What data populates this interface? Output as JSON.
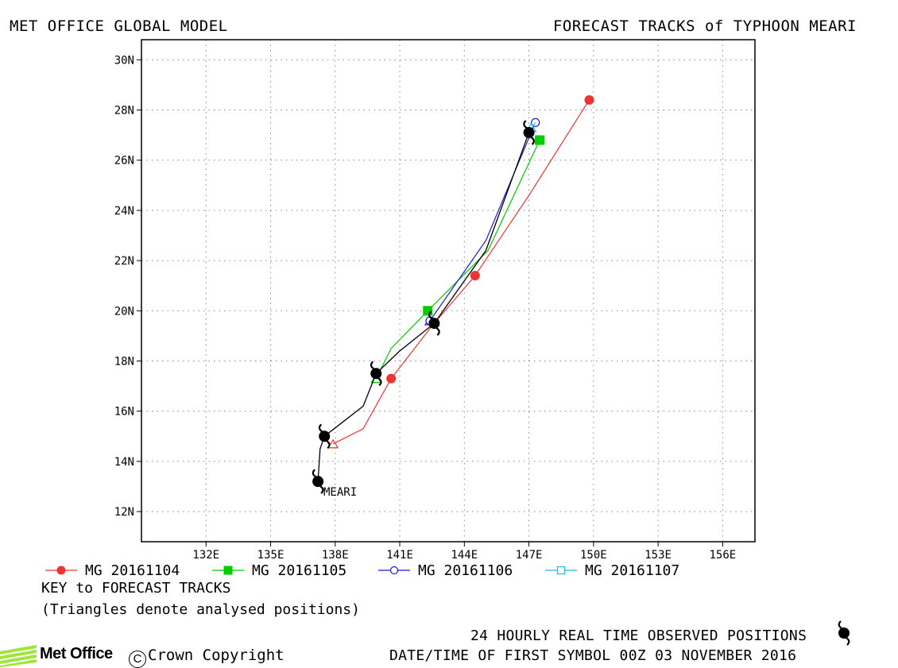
{
  "header": {
    "left_title": "MET OFFICE GLOBAL MODEL",
    "right_title": "FORECAST TRACKS of TYPHOON MEARI"
  },
  "chart_data": {
    "type": "line",
    "title": "FORECAST TRACKS of TYPHOON MEARI",
    "x_axis": {
      "unit": "longitude E",
      "range": [
        129,
        157.5
      ],
      "ticks": [
        "132E",
        "135E",
        "138E",
        "141E",
        "144E",
        "147E",
        "150E",
        "153E",
        "156E"
      ],
      "tick_values": [
        132,
        135,
        138,
        141,
        144,
        147,
        150,
        153,
        156
      ]
    },
    "y_axis": {
      "unit": "latitude N",
      "range": [
        10.8,
        30.8
      ],
      "ticks": [
        "12N",
        "14N",
        "16N",
        "18N",
        "20N",
        "22N",
        "24N",
        "26N",
        "28N",
        "30N"
      ],
      "tick_values": [
        12,
        14,
        16,
        18,
        20,
        22,
        24,
        26,
        28,
        30
      ]
    },
    "grid": true,
    "storm_label": "MEARI",
    "observed_track": {
      "name": "24 HOURLY REAL TIME OBSERVED POSITIONS",
      "color": "#000000",
      "path": [
        [
          137.2,
          13.2
        ],
        [
          137.3,
          14.5
        ],
        [
          137.5,
          15.0
        ],
        [
          138.4,
          15.6
        ],
        [
          139.3,
          16.2
        ],
        [
          139.9,
          17.5
        ],
        [
          141.0,
          18.4
        ],
        [
          142.6,
          19.5
        ],
        [
          145.0,
          22.4
        ],
        [
          147.0,
          27.1
        ]
      ],
      "symbol_points": [
        [
          137.2,
          13.2
        ],
        [
          137.5,
          15.0
        ],
        [
          139.9,
          17.5
        ],
        [
          142.6,
          19.5
        ],
        [
          147.0,
          27.1
        ]
      ]
    },
    "series": [
      {
        "name": "MG 20161104",
        "color": "#ee3333",
        "marker": "filled-circle",
        "path": [
          [
            137.9,
            14.7
          ],
          [
            139.3,
            15.3
          ],
          [
            140.6,
            17.3
          ],
          [
            142.5,
            19.4
          ],
          [
            144.5,
            21.4
          ],
          [
            147.0,
            24.6
          ],
          [
            149.8,
            28.4
          ]
        ],
        "marker_points": [
          [
            140.6,
            17.3
          ],
          [
            144.5,
            21.4
          ],
          [
            149.8,
            28.4
          ]
        ],
        "analysis_point": [
          137.9,
          14.7
        ]
      },
      {
        "name": "MG 20161105",
        "color": "#00cc00",
        "marker": "filled-square",
        "path": [
          [
            139.9,
            17.3
          ],
          [
            140.6,
            18.5
          ],
          [
            142.3,
            20.0
          ],
          [
            145.1,
            22.4
          ],
          [
            147.5,
            26.8
          ]
        ],
        "marker_points": [
          [
            142.3,
            20.0
          ],
          [
            147.5,
            26.8
          ]
        ],
        "analysis_point": [
          139.9,
          17.3
        ]
      },
      {
        "name": "MG 20161106",
        "color": "#1a1ad6",
        "marker": "open-circle",
        "path": [
          [
            142.4,
            19.6
          ],
          [
            145.0,
            22.8
          ],
          [
            147.3,
            27.5
          ]
        ],
        "marker_points": [
          [
            142.4,
            19.6
          ],
          [
            147.3,
            27.5
          ]
        ],
        "analysis_point": [
          142.4,
          19.6
        ]
      },
      {
        "name": "MG 20161107",
        "color": "#22bbdd",
        "marker": "open-square",
        "path": [
          [
            147.0,
            27.1
          ],
          [
            147.3,
            27.5
          ]
        ],
        "marker_points": [],
        "analysis_point": [
          147.1,
          27.3
        ]
      }
    ]
  },
  "legend": {
    "key_title": "KEY to FORECAST TRACKS",
    "note": "(Triangles denote analysed positions)"
  },
  "footer": {
    "observed_label": "24 HOURLY REAL TIME OBSERVED POSITIONS",
    "date_label": "DATE/TIME OF FIRST SYMBOL 00Z 03 NOVEMBER 2016",
    "logo_text": "Met Office",
    "copyright_text": "Crown Copyright",
    "copyright_symbol": "C"
  }
}
